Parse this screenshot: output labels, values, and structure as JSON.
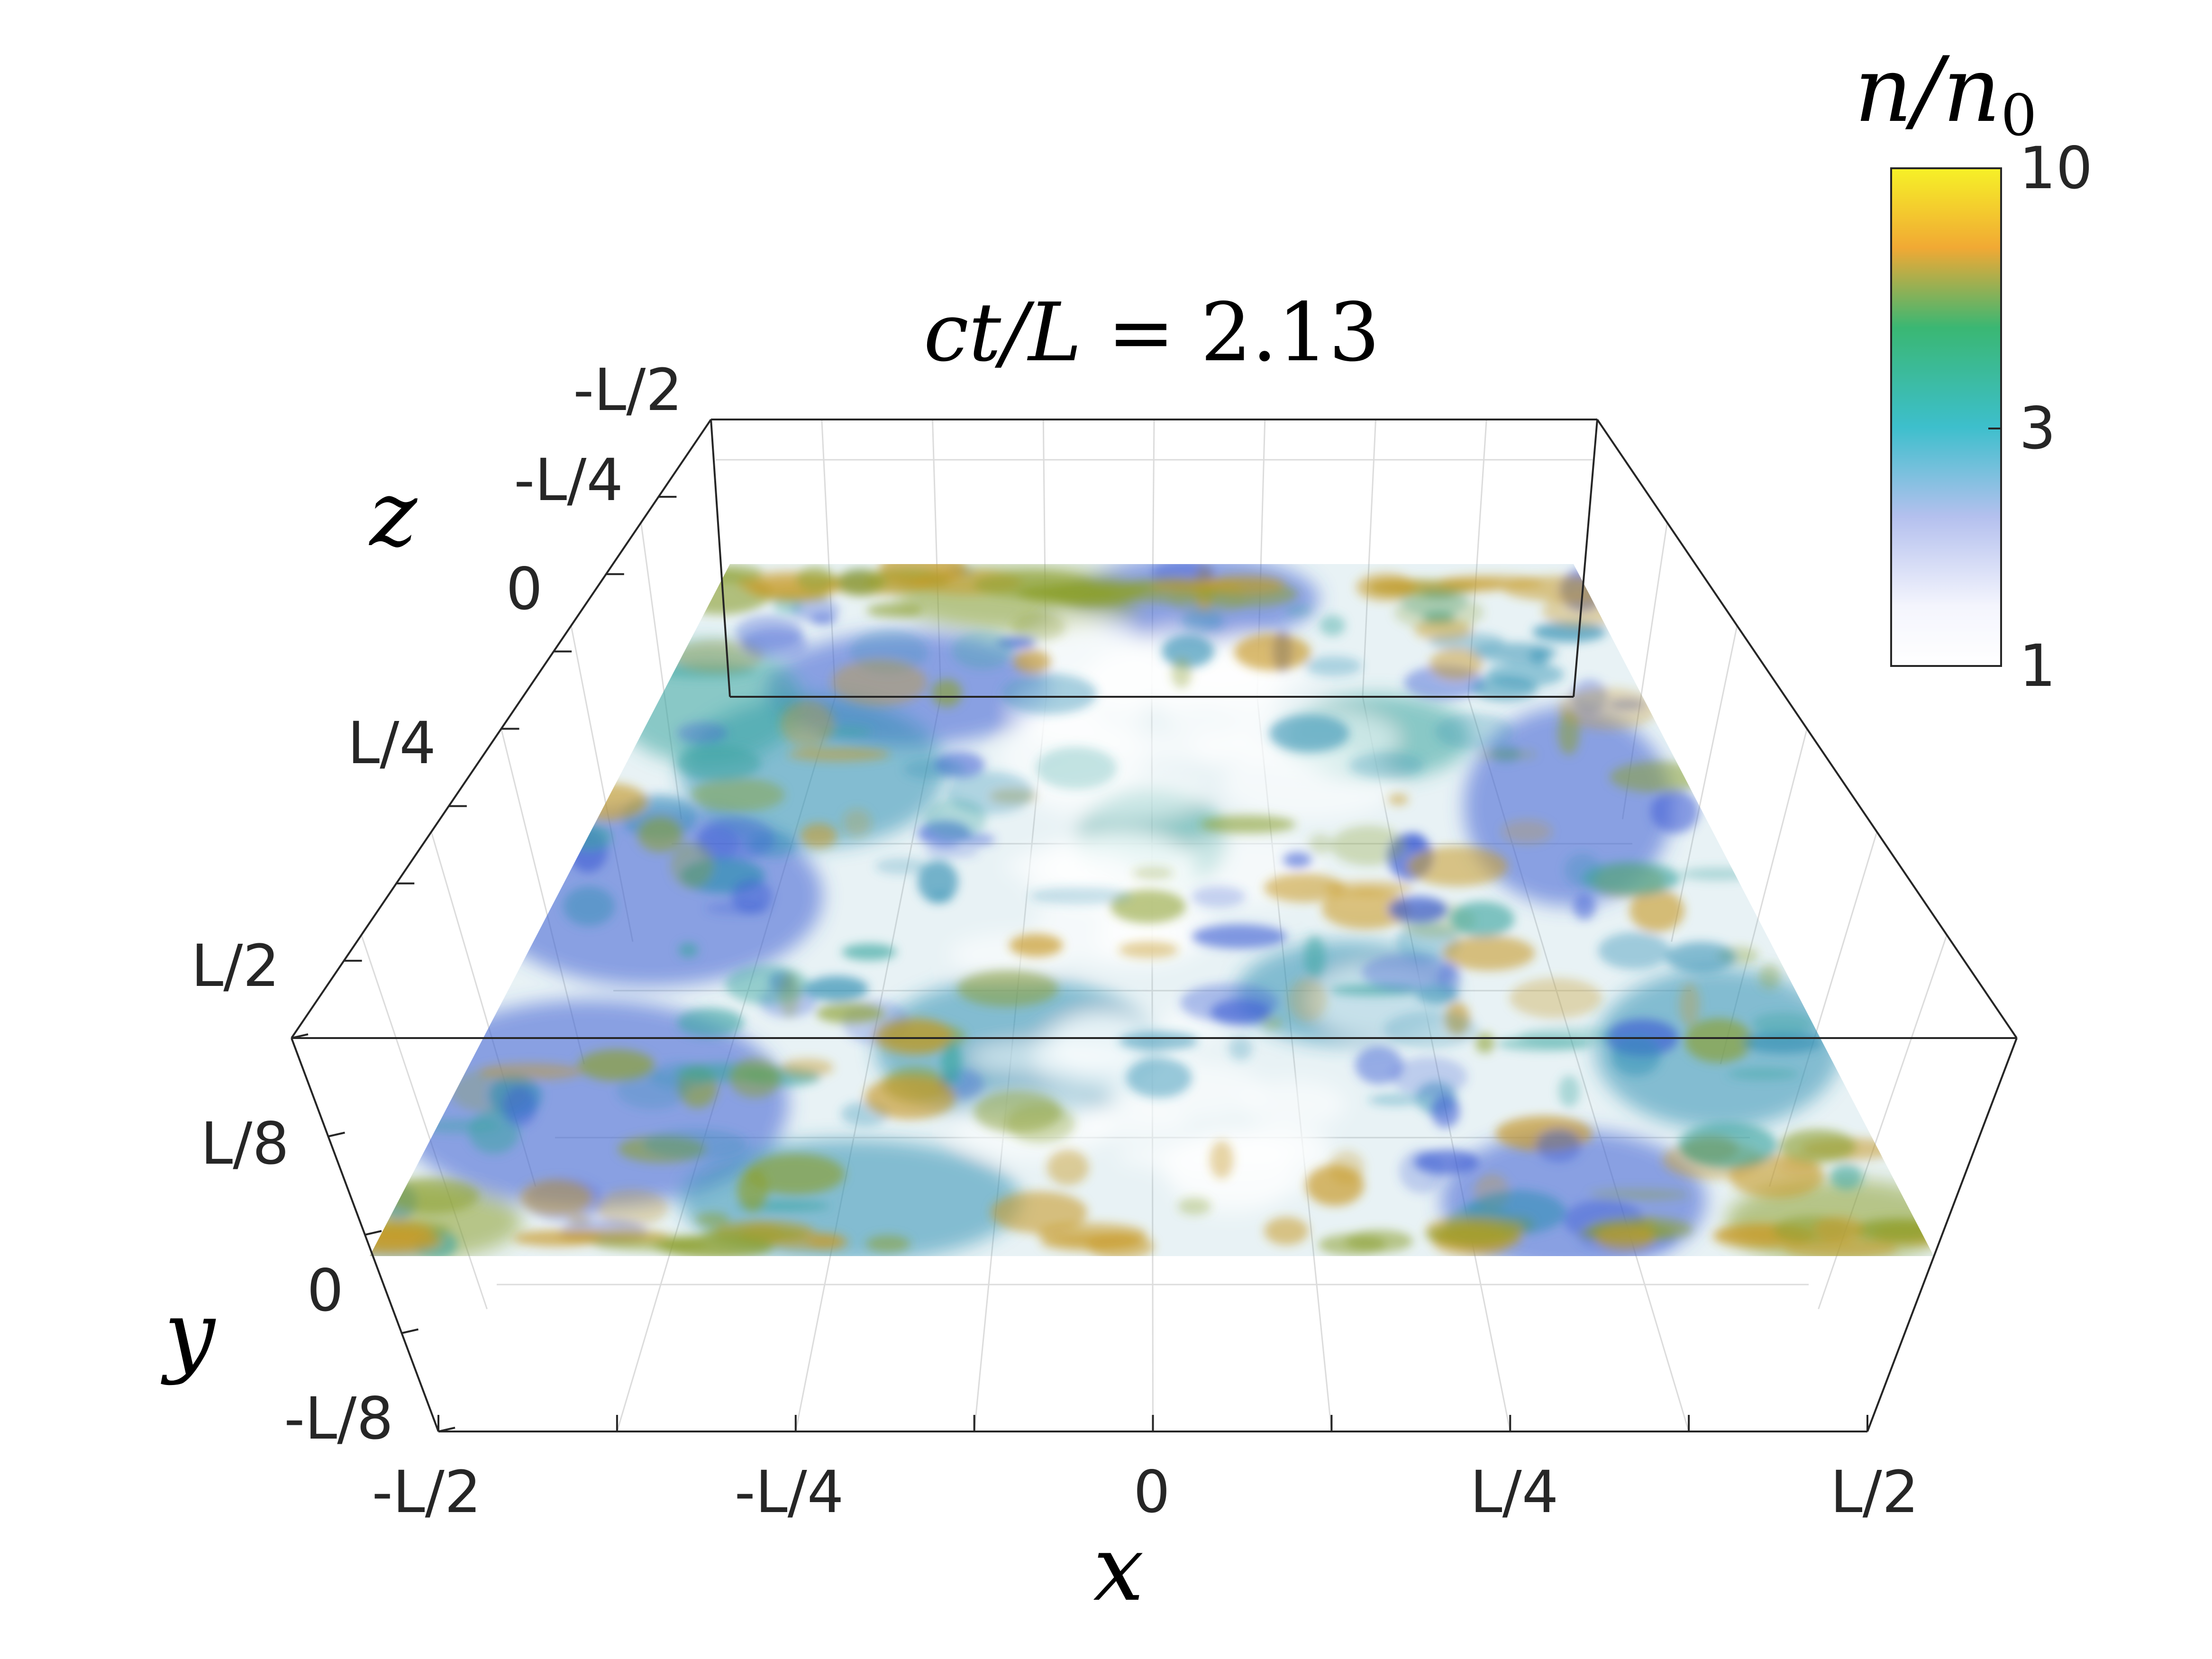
{
  "chart_data": {
    "type": "volume-3d",
    "title_parts": {
      "var": "ct/L",
      "eq": " = ",
      "value": "2.13"
    },
    "x_axis": {
      "label": "x",
      "ticks": [
        "-L/2",
        "-L/4",
        "0",
        "L/4",
        "L/2"
      ]
    },
    "y_axis": {
      "label": "y",
      "ticks": [
        "-L/8",
        "0",
        "L/8"
      ]
    },
    "z_axis": {
      "label": "z",
      "ticks": [
        "L/2",
        "L/4",
        "0",
        "-L/4",
        "-L/2"
      ]
    },
    "colorbar": {
      "label_var": "n/n",
      "label_sub": "0",
      "ticks": [
        {
          "label": "10",
          "value": 10
        },
        {
          "label": "3",
          "value": 3
        },
        {
          "label": "1",
          "value": 1
        }
      ],
      "range": [
        1,
        10
      ],
      "scale": "log",
      "colors": [
        "#ffffff",
        "#b4bef0",
        "#3cb8c8",
        "#3cb46e",
        "#f0a832",
        "#f5f028"
      ]
    },
    "grid": true,
    "surface_colors": [
      "#3b5bd4",
      "#2f8fb3",
      "#3aa5a0",
      "#8ca030",
      "#c89a28"
    ]
  }
}
